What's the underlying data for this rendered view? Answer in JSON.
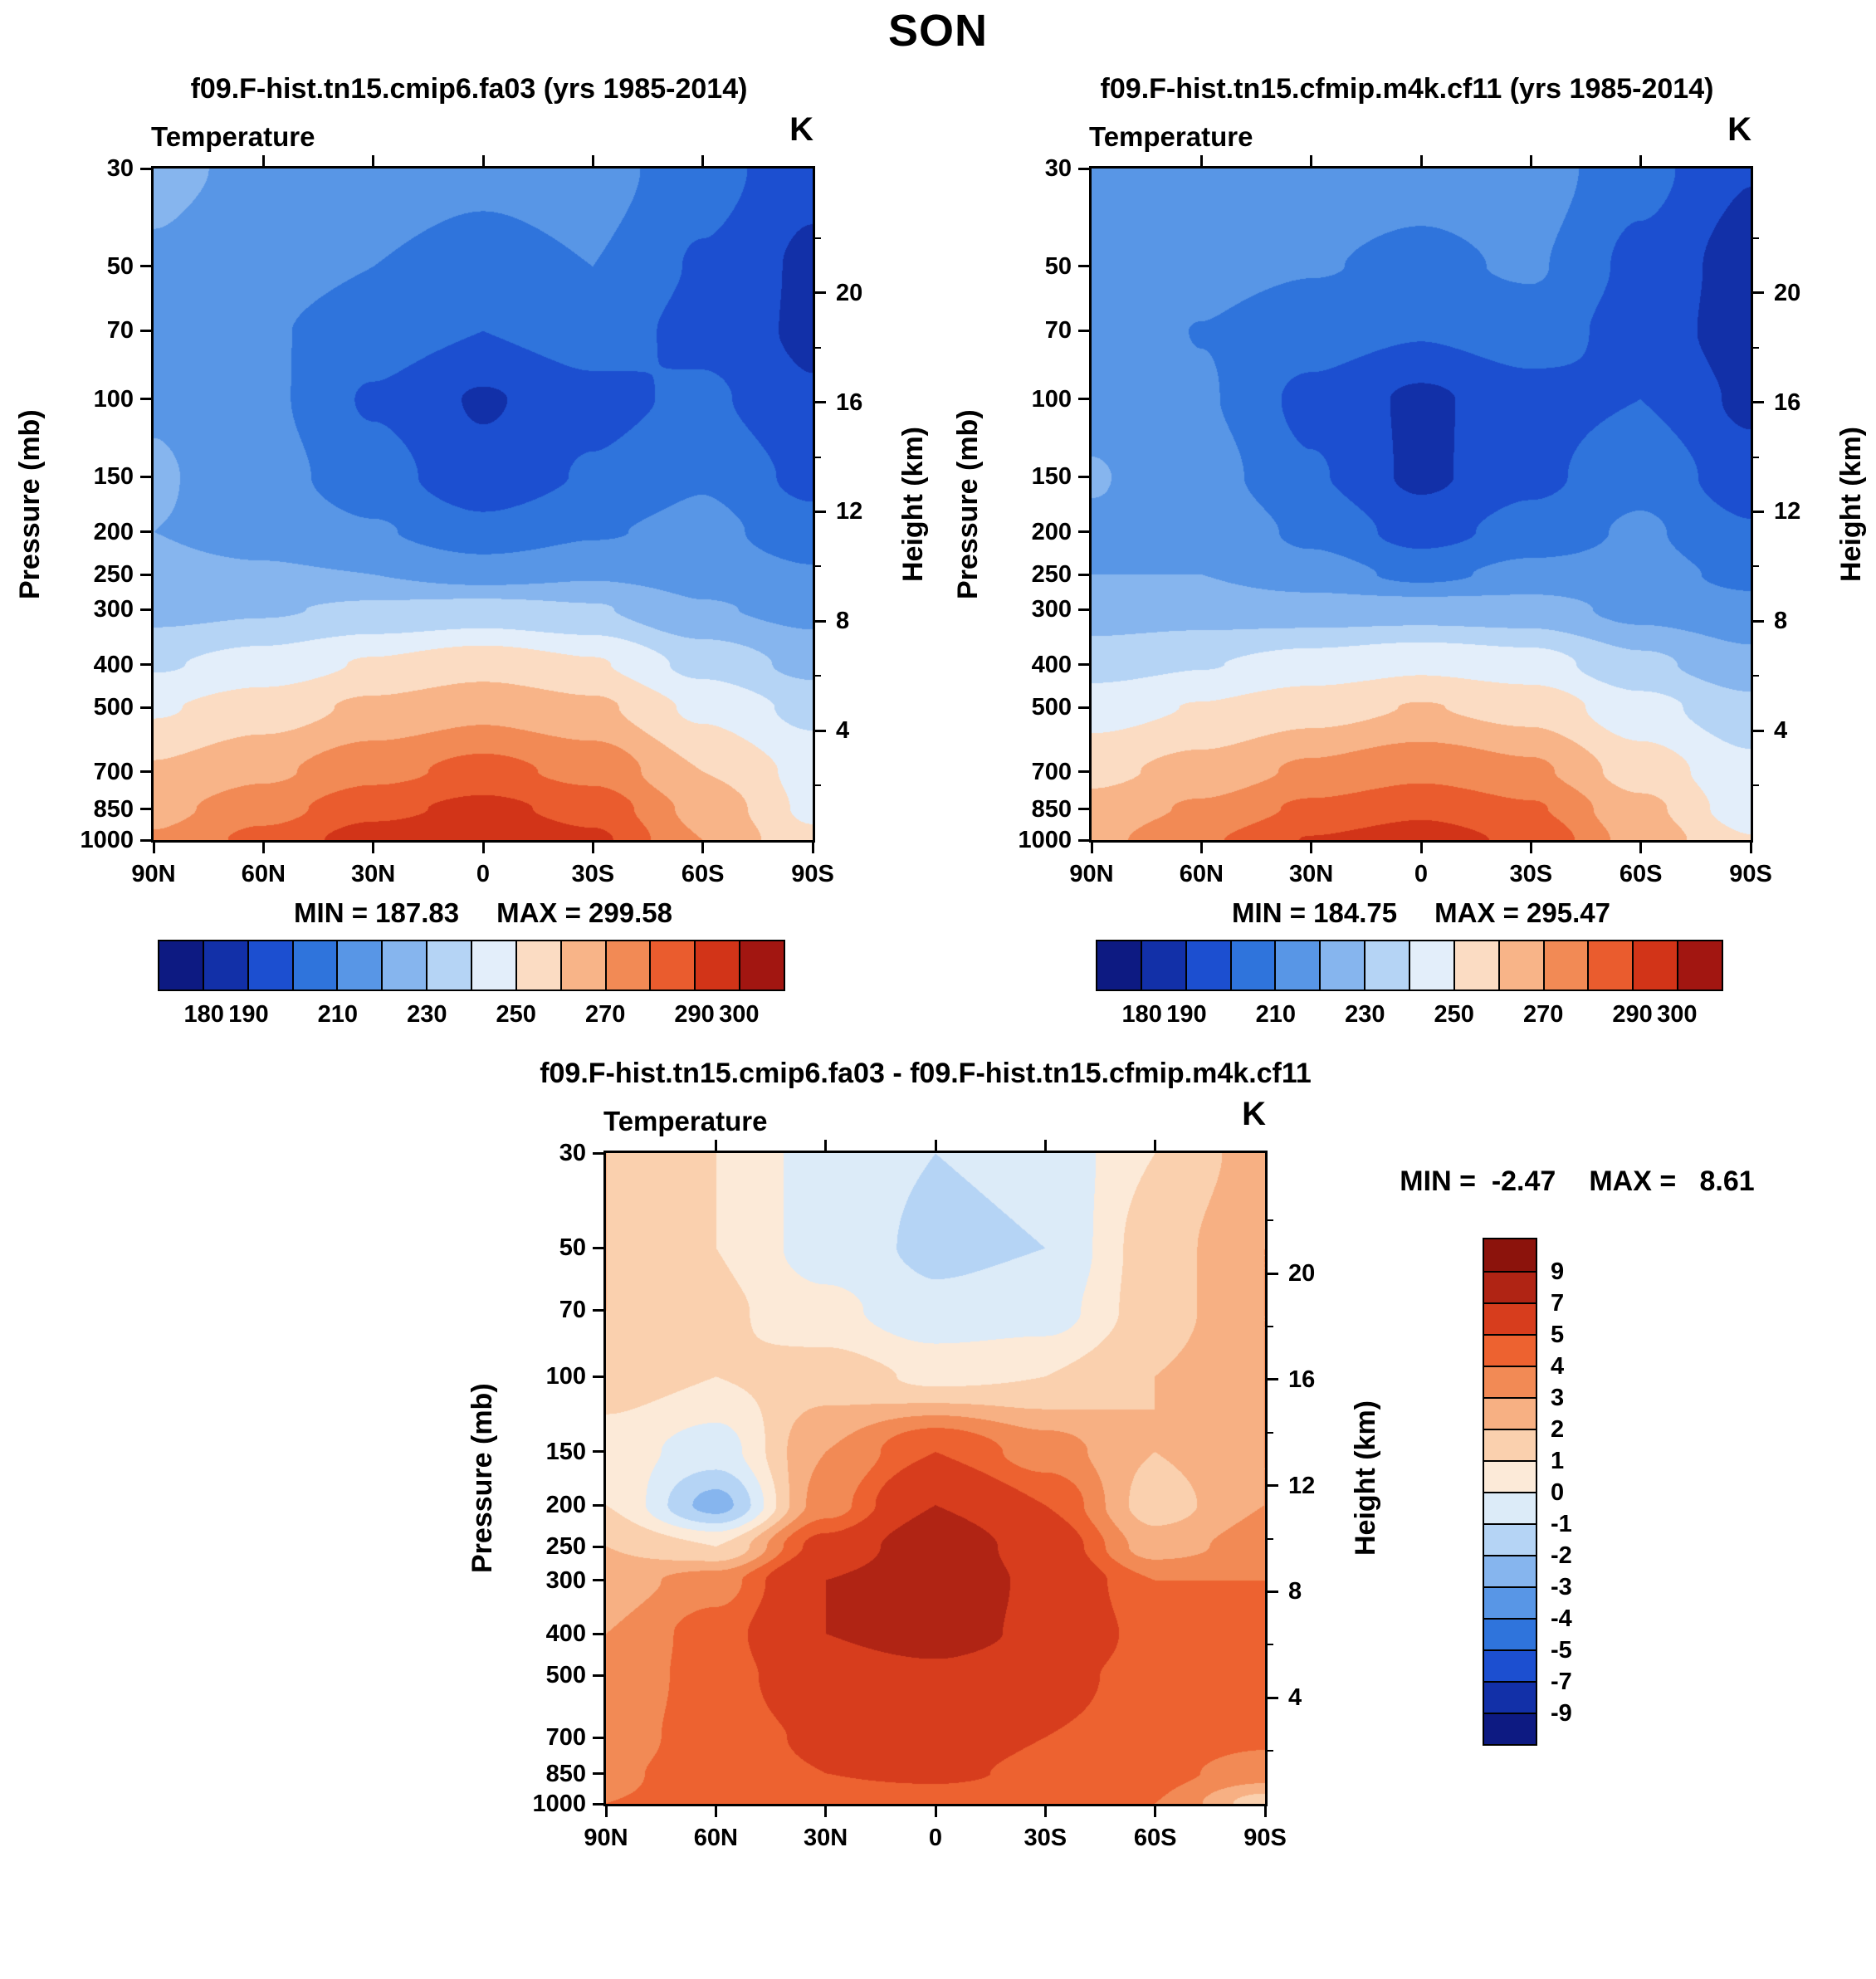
{
  "title": "SON",
  "axes": {
    "ylabel": "Pressure (mb)",
    "ylabel_right": "Height (km)",
    "pressure_ticks": [
      30,
      50,
      70,
      100,
      150,
      200,
      250,
      300,
      400,
      500,
      700,
      850,
      1000
    ],
    "height_ticks": [
      20,
      16,
      12,
      8,
      4
    ],
    "height_minor_ticks": [
      22,
      18,
      14,
      10,
      6,
      2
    ],
    "lat_tick_labels": [
      "90N",
      "60N",
      "30N",
      "0",
      "30S",
      "60S",
      "90S"
    ],
    "lat_tick_values": [
      90,
      60,
      30,
      0,
      -30,
      -60,
      -90
    ]
  },
  "chart_data": [
    {
      "type": "heatmap",
      "title": "f09.F-hist.tn15.cmip6.fa03 (yrs 1985-2014)",
      "field": "Temperature",
      "units": "K",
      "stats": {
        "min_label": "MIN = 187.83",
        "max_label": "MAX = 299.58"
      },
      "lats": [
        90,
        60,
        30,
        0,
        -30,
        -60,
        -90
      ],
      "pressure_levels": [
        30,
        50,
        70,
        100,
        150,
        200,
        250,
        300,
        400,
        500,
        700,
        850,
        1000
      ],
      "values": [
        [
          222,
          218,
          214,
          212,
          214,
          204,
          193
        ],
        [
          219,
          214,
          210,
          207,
          210,
          199,
          188
        ],
        [
          217,
          211,
          205,
          200,
          205,
          197,
          188
        ],
        [
          219,
          212,
          199,
          189,
          197,
          202,
          191
        ],
        [
          221,
          214,
          204,
          193,
          201,
          209,
          197
        ],
        [
          220,
          217,
          211,
          203,
          209,
          213,
          204
        ],
        [
          222,
          221,
          220,
          216,
          219,
          216,
          211
        ],
        [
          227,
          229,
          232,
          234,
          231,
          221,
          217
        ],
        [
          239,
          244,
          251,
          256,
          251,
          237,
          227
        ],
        [
          249,
          255,
          262,
          267,
          262,
          248,
          237
        ],
        [
          261,
          268,
          277,
          283,
          277,
          260,
          247
        ],
        [
          267,
          276,
          287,
          293,
          286,
          267,
          248
        ],
        [
          271,
          283,
          295,
          299.5,
          292,
          270,
          252
        ]
      ],
      "contour_levels": [
        180,
        190,
        200,
        210,
        220,
        230,
        240,
        250,
        260,
        270,
        280,
        290,
        300
      ],
      "colors": [
        "#0d1a82",
        "#1230a8",
        "#1c4fd0",
        "#2f74dc",
        "#5896e6",
        "#86b5ee",
        "#b5d4f5",
        "#e3eefa",
        "#fbdcc3",
        "#f8b488",
        "#f28a55",
        "#ea5c2e",
        "#d23418",
        "#a21611"
      ],
      "colorbar_tick_labels": [
        "180",
        "190",
        "210",
        "230",
        "250",
        "270",
        "290",
        "300"
      ]
    },
    {
      "type": "heatmap",
      "title": "f09.F-hist.tn15.cfmip.m4k.cf11 (yrs 1985-2014)",
      "field": "Temperature",
      "units": "K",
      "stats": {
        "min_label": "MIN = 184.75",
        "max_label": "MAX = 295.47"
      },
      "lats": [
        90,
        60,
        30,
        0,
        -30,
        -60,
        -90
      ],
      "pressure_levels": [
        30,
        50,
        70,
        100,
        150,
        200,
        250,
        300,
        400,
        500,
        700,
        850,
        1000
      ],
      "values": [
        [
          220,
          217,
          214.5,
          213,
          214.8,
          203,
          190.5
        ],
        [
          217,
          213,
          210.5,
          208.2,
          211,
          197.5,
          185
        ],
        [
          215,
          209.8,
          204.7,
          200.8,
          205.5,
          195.5,
          185
        ],
        [
          217.5,
          211,
          197.5,
          188.2,
          196,
          200,
          188
        ],
        [
          220.5,
          214.5,
          201,
          188,
          197.5,
          207,
          194
        ],
        [
          219,
          219.4,
          207.5,
          196,
          204,
          211.5,
          201
        ],
        [
          220,
          220,
          214.5,
          207.5,
          213,
          213.5,
          207.5
        ],
        [
          224.5,
          225.5,
          225,
          225.4,
          224.5,
          217,
          213
        ],
        [
          236,
          239.5,
          244,
          248,
          244.5,
          232.5,
          223
        ],
        [
          245.8,
          250.5,
          256,
          260.5,
          256.5,
          243.5,
          233
        ],
        [
          257.5,
          263.5,
          271.8,
          277.5,
          272,
          255.5,
          242.8
        ],
        [
          263.2,
          271.5,
          282,
          287.8,
          281.2,
          262.7,
          244.5
        ],
        [
          267,
          278.7,
          290.4,
          295,
          287.6,
          266,
          250.5
        ]
      ],
      "contour_levels": [
        180,
        190,
        200,
        210,
        220,
        230,
        240,
        250,
        260,
        270,
        280,
        290,
        300
      ],
      "colors": [
        "#0d1a82",
        "#1230a8",
        "#1c4fd0",
        "#2f74dc",
        "#5896e6",
        "#86b5ee",
        "#b5d4f5",
        "#e3eefa",
        "#fbdcc3",
        "#f8b488",
        "#f28a55",
        "#ea5c2e",
        "#d23418",
        "#a21611"
      ],
      "colorbar_tick_labels": [
        "180",
        "190",
        "210",
        "230",
        "250",
        "270",
        "290",
        "300"
      ]
    },
    {
      "type": "heatmap",
      "title": "f09.F-hist.tn15.cmip6.fa03 - f09.F-hist.tn15.cfmip.m4k.cf11",
      "field": "Temperature",
      "units": "K",
      "stats": {
        "min_label": "MIN =  -2.47",
        "max_label": "MAX =   8.61"
      },
      "lats": [
        90,
        60,
        30,
        0,
        -30,
        -60,
        -90
      ],
      "pressure_levels": [
        30,
        50,
        70,
        100,
        150,
        200,
        250,
        300,
        400,
        500,
        700,
        850,
        1000
      ],
      "values": [
        [
          2,
          1,
          -0.5,
          -1,
          -0.8,
          1,
          2.5
        ],
        [
          2,
          1,
          -0.5,
          -1.2,
          -1,
          1.5,
          3
        ],
        [
          2,
          1.2,
          0.3,
          -0.8,
          -0.5,
          1.5,
          3
        ],
        [
          1.5,
          1,
          1.5,
          0.8,
          1,
          2,
          3
        ],
        [
          0.5,
          -0.5,
          3,
          5,
          3.5,
          2,
          3
        ],
        [
          1,
          -2.4,
          3.5,
          7,
          5,
          1.5,
          3
        ],
        [
          2,
          1,
          5.5,
          8.5,
          6,
          2.5,
          3.5
        ],
        [
          2.5,
          3.5,
          7,
          8.6,
          6.5,
          4,
          4
        ],
        [
          3,
          4.5,
          7,
          8,
          6.5,
          4.5,
          4
        ],
        [
          3.2,
          4.5,
          6,
          6.5,
          5.5,
          4.5,
          4
        ],
        [
          3.5,
          4.5,
          5.2,
          5.5,
          5,
          4.5,
          4.2
        ],
        [
          3.8,
          4.5,
          5,
          5.2,
          4.8,
          4.3,
          3.5
        ],
        [
          4,
          4.3,
          4.6,
          4.5,
          4.4,
          4,
          1.5
        ]
      ],
      "contour_levels": [
        -9,
        -7,
        -5,
        -4,
        -3,
        -2,
        -1,
        0,
        1,
        2,
        3,
        4,
        5,
        7,
        9
      ],
      "colors": [
        "#0d1a82",
        "#1230a8",
        "#1c4fd0",
        "#2f74dc",
        "#5896e6",
        "#86b5ee",
        "#b5d4f5",
        "#dcebf8",
        "#fcead8",
        "#fad0ae",
        "#f7b083",
        "#f28a55",
        "#ed6230",
        "#d73d1d",
        "#b02414",
        "#8c130c"
      ],
      "colorbar_tick_labels": [
        "9",
        "7",
        "5",
        "4",
        "3",
        "2",
        "1",
        "0",
        "-1",
        "-2",
        "-3",
        "-4",
        "-5",
        "-7",
        "-9"
      ]
    }
  ]
}
